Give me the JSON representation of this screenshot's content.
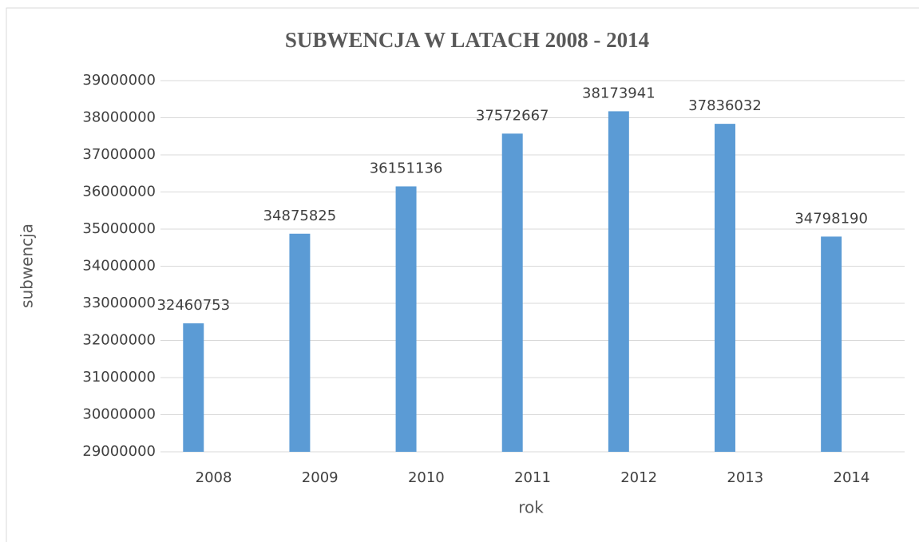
{
  "chart_data": {
    "type": "bar",
    "title": "SUBWENCJA W LATACH 2008 - 2014",
    "x_label": "rok",
    "y_label": "subwencja",
    "categories": [
      "2008",
      "2009",
      "2010",
      "2011",
      "2012",
      "2013",
      "2014"
    ],
    "values": [
      32460753,
      34875825,
      36151136,
      37572667,
      38173941,
      37836032,
      34798190
    ],
    "color": "#5b9bd5",
    "ylim": [
      29000000,
      39000000
    ],
    "yticks": [
      29000000,
      30000000,
      31000000,
      32000000,
      33000000,
      34000000,
      35000000,
      36000000,
      37000000,
      38000000,
      39000000
    ],
    "grid": true
  }
}
